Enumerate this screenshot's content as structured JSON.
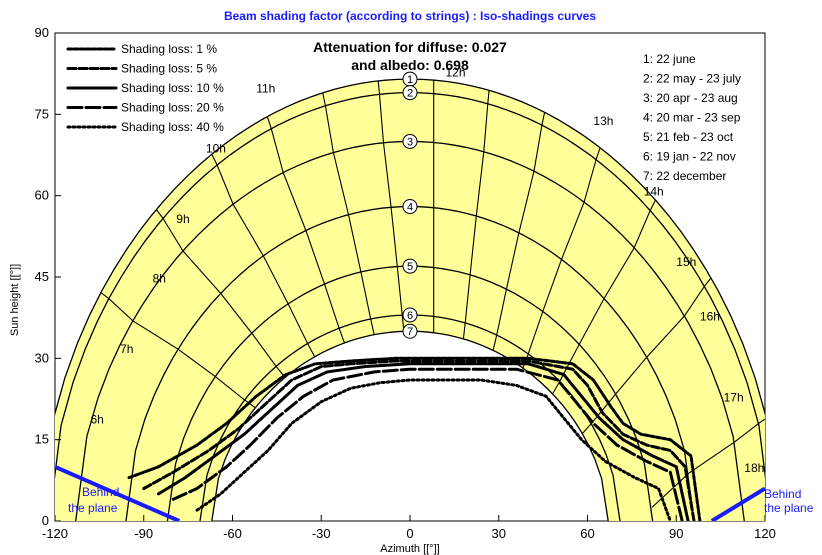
{
  "chart_data": {
    "type": "line",
    "title": "Beam shading factor (according to strings) : Iso-shadings curves",
    "xlabel": "Azimuth [[°]]",
    "ylabel": "Sun height [[°]]",
    "xlim": [
      -120,
      120
    ],
    "ylim": [
      0,
      90
    ],
    "xticks": [
      -120,
      -90,
      -60,
      -30,
      0,
      30,
      60,
      90,
      120
    ],
    "yticks": [
      0,
      15,
      30,
      45,
      60,
      75,
      90
    ],
    "annotation_lines": [
      "Attenuation for diffuse: 0.027",
      "and albedo: 0.698"
    ],
    "legend": [
      {
        "label": "Shading loss: 1 %",
        "style": "dash-fine"
      },
      {
        "label": "Shading loss: 5 %",
        "style": "dash-medium"
      },
      {
        "label": "Shading loss: 10 %",
        "style": "solid"
      },
      {
        "label": "Shading loss: 20 %",
        "style": "dash-long"
      },
      {
        "label": "Shading loss: 40 %",
        "style": "dotted"
      }
    ],
    "dates": [
      {
        "num": "1",
        "label": "22 june",
        "peak": 81.5
      },
      {
        "num": "2",
        "label": "22 may - 23 july",
        "peak": 79
      },
      {
        "num": "3",
        "label": "20 apr - 23 aug",
        "peak": 70
      },
      {
        "num": "4",
        "label": "20 mar - 23 sep",
        "peak": 58
      },
      {
        "num": "5",
        "label": "21 feb - 23 oct",
        "peak": 47
      },
      {
        "num": "6",
        "label": "19 jan - 22 nov",
        "peak": 38
      },
      {
        "num": "7",
        "label": "22 december",
        "peak": 35
      }
    ],
    "hour_labels": [
      {
        "label": "6h",
        "az": -108,
        "alt": 18
      },
      {
        "label": "7h",
        "az": -98,
        "alt": 31
      },
      {
        "label": "8h",
        "az": -87,
        "alt": 44
      },
      {
        "label": "9h",
        "az": -79,
        "alt": 55
      },
      {
        "label": "10h",
        "az": -69,
        "alt": 68
      },
      {
        "label": "11h",
        "az": -52,
        "alt": 79
      },
      {
        "label": "12h",
        "az": 12,
        "alt": 82
      },
      {
        "label": "13h",
        "az": 62,
        "alt": 73
      },
      {
        "label": "14h",
        "az": 79,
        "alt": 60
      },
      {
        "label": "15h",
        "az": 90,
        "alt": 47
      },
      {
        "label": "16h",
        "az": 98,
        "alt": 37
      },
      {
        "label": "17h",
        "az": 106,
        "alt": 22
      },
      {
        "label": "18h",
        "az": 113,
        "alt": 9
      }
    ],
    "iso_shading": [
      {
        "loss": "1 %",
        "az": [
          -95,
          -85,
          -72,
          -62,
          -52,
          -42,
          -32,
          -20,
          -5,
          0,
          20,
          40,
          55,
          62,
          68,
          72,
          78,
          88,
          95,
          98
        ],
        "alt": [
          8,
          10,
          14,
          18,
          23,
          27,
          29,
          29.5,
          30,
          30,
          30,
          30,
          29,
          26,
          21,
          18,
          16,
          15,
          12,
          0
        ]
      },
      {
        "loss": "5 %",
        "az": [
          -90,
          -80,
          -68,
          -58,
          -48,
          -40,
          -30,
          -20,
          -5,
          0,
          20,
          40,
          55,
          60,
          65,
          72,
          80,
          88,
          93,
          96
        ],
        "alt": [
          6,
          9,
          13,
          17,
          22,
          26,
          28.5,
          29,
          29.5,
          29.5,
          29.5,
          29.5,
          28,
          25,
          20,
          16,
          14,
          13,
          10,
          0
        ]
      },
      {
        "loss": "10 %",
        "az": [
          -85,
          -76,
          -66,
          -56,
          -46,
          -38,
          -28,
          -15,
          0,
          20,
          40,
          52,
          58,
          64,
          72,
          82,
          90,
          94
        ],
        "alt": [
          5,
          8,
          12,
          16,
          21,
          25,
          27.5,
          28.5,
          29,
          29,
          29,
          27,
          23,
          19,
          15,
          12,
          10,
          0
        ]
      },
      {
        "loss": "20 %",
        "az": [
          -80,
          -72,
          -62,
          -54,
          -45,
          -36,
          -26,
          -12,
          0,
          18,
          36,
          50,
          56,
          62,
          70,
          80,
          88,
          92
        ],
        "alt": [
          4,
          6,
          10,
          14,
          19,
          23,
          26,
          27.5,
          28,
          28,
          28,
          26,
          22,
          18,
          14,
          11,
          9,
          0
        ]
      },
      {
        "loss": "40 %",
        "az": [
          -72,
          -64,
          -56,
          -48,
          -40,
          -30,
          -20,
          -10,
          0,
          12,
          24,
          36,
          46,
          52,
          58,
          66,
          76,
          84,
          88
        ],
        "alt": [
          2,
          5,
          9,
          13,
          18,
          22,
          24.5,
          25.5,
          26,
          26,
          26,
          25,
          23,
          19,
          15,
          11,
          8,
          6,
          0
        ]
      }
    ],
    "behind_plane": {
      "label_left": "Behind the plane",
      "label_right": "Behind the plane",
      "line_color": "#1a1aff"
    },
    "fill_color": "#ffff99",
    "grid": false
  }
}
